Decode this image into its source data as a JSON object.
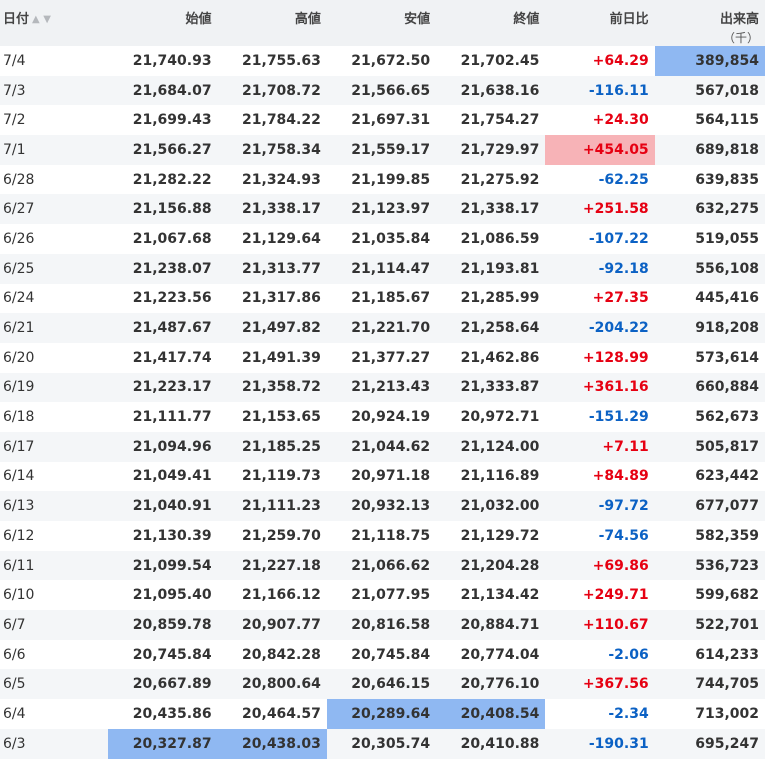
{
  "header": {
    "date": "日付",
    "open": "始値",
    "high": "高値",
    "low": "安値",
    "close": "終値",
    "change": "前日比",
    "volume": "出来高",
    "volume_unit": "（千）",
    "sort_up_icon": "sort-up-icon",
    "sort_down_icon": "sort-down-icon",
    "sort_up_glyph": "▲",
    "sort_down_glyph": "▼"
  },
  "colors": {
    "up": "#e60012",
    "down": "#0b61c4",
    "highlight_blue": "#8fb8f2",
    "highlight_red": "#f7b3b7"
  },
  "rows": [
    {
      "date": "7/4",
      "open": "21,740.93",
      "high": "21,755.63",
      "low": "21,672.50",
      "close": "21,702.45",
      "change": "+64.29",
      "volume": "389,854",
      "hl": [
        "volume"
      ]
    },
    {
      "date": "7/3",
      "open": "21,684.07",
      "high": "21,708.72",
      "low": "21,566.65",
      "close": "21,638.16",
      "change": "-116.11",
      "volume": "567,018",
      "hl": []
    },
    {
      "date": "7/2",
      "open": "21,699.43",
      "high": "21,784.22",
      "low": "21,697.31",
      "close": "21,754.27",
      "change": "+24.30",
      "volume": "564,115",
      "hl": []
    },
    {
      "date": "7/1",
      "open": "21,566.27",
      "high": "21,758.34",
      "low": "21,559.17",
      "close": "21,729.97",
      "change": "+454.05",
      "volume": "689,818",
      "hl": [
        "change"
      ]
    },
    {
      "date": "6/28",
      "open": "21,282.22",
      "high": "21,324.93",
      "low": "21,199.85",
      "close": "21,275.92",
      "change": "-62.25",
      "volume": "639,835",
      "hl": []
    },
    {
      "date": "6/27",
      "open": "21,156.88",
      "high": "21,338.17",
      "low": "21,123.97",
      "close": "21,338.17",
      "change": "+251.58",
      "volume": "632,275",
      "hl": []
    },
    {
      "date": "6/26",
      "open": "21,067.68",
      "high": "21,129.64",
      "low": "21,035.84",
      "close": "21,086.59",
      "change": "-107.22",
      "volume": "519,055",
      "hl": []
    },
    {
      "date": "6/25",
      "open": "21,238.07",
      "high": "21,313.77",
      "low": "21,114.47",
      "close": "21,193.81",
      "change": "-92.18",
      "volume": "556,108",
      "hl": []
    },
    {
      "date": "6/24",
      "open": "21,223.56",
      "high": "21,317.86",
      "low": "21,185.67",
      "close": "21,285.99",
      "change": "+27.35",
      "volume": "445,416",
      "hl": []
    },
    {
      "date": "6/21",
      "open": "21,487.67",
      "high": "21,497.82",
      "low": "21,221.70",
      "close": "21,258.64",
      "change": "-204.22",
      "volume": "918,208",
      "hl": []
    },
    {
      "date": "6/20",
      "open": "21,417.74",
      "high": "21,491.39",
      "low": "21,377.27",
      "close": "21,462.86",
      "change": "+128.99",
      "volume": "573,614",
      "hl": []
    },
    {
      "date": "6/19",
      "open": "21,223.17",
      "high": "21,358.72",
      "low": "21,213.43",
      "close": "21,333.87",
      "change": "+361.16",
      "volume": "660,884",
      "hl": []
    },
    {
      "date": "6/18",
      "open": "21,111.77",
      "high": "21,153.65",
      "low": "20,924.19",
      "close": "20,972.71",
      "change": "-151.29",
      "volume": "562,673",
      "hl": []
    },
    {
      "date": "6/17",
      "open": "21,094.96",
      "high": "21,185.25",
      "low": "21,044.62",
      "close": "21,124.00",
      "change": "+7.11",
      "volume": "505,817",
      "hl": []
    },
    {
      "date": "6/14",
      "open": "21,049.41",
      "high": "21,119.73",
      "low": "20,971.18",
      "close": "21,116.89",
      "change": "+84.89",
      "volume": "623,442",
      "hl": []
    },
    {
      "date": "6/13",
      "open": "21,040.91",
      "high": "21,111.23",
      "low": "20,932.13",
      "close": "21,032.00",
      "change": "-97.72",
      "volume": "677,077",
      "hl": []
    },
    {
      "date": "6/12",
      "open": "21,130.39",
      "high": "21,259.70",
      "low": "21,118.75",
      "close": "21,129.72",
      "change": "-74.56",
      "volume": "582,359",
      "hl": []
    },
    {
      "date": "6/11",
      "open": "21,099.54",
      "high": "21,227.18",
      "low": "21,066.62",
      "close": "21,204.28",
      "change": "+69.86",
      "volume": "536,723",
      "hl": []
    },
    {
      "date": "6/10",
      "open": "21,095.40",
      "high": "21,166.12",
      "low": "21,077.95",
      "close": "21,134.42",
      "change": "+249.71",
      "volume": "599,682",
      "hl": []
    },
    {
      "date": "6/7",
      "open": "20,859.78",
      "high": "20,907.77",
      "low": "20,816.58",
      "close": "20,884.71",
      "change": "+110.67",
      "volume": "522,701",
      "hl": []
    },
    {
      "date": "6/6",
      "open": "20,745.84",
      "high": "20,842.28",
      "low": "20,745.84",
      "close": "20,774.04",
      "change": "-2.06",
      "volume": "614,233",
      "hl": []
    },
    {
      "date": "6/5",
      "open": "20,667.89",
      "high": "20,800.64",
      "low": "20,646.15",
      "close": "20,776.10",
      "change": "+367.56",
      "volume": "744,705",
      "hl": []
    },
    {
      "date": "6/4",
      "open": "20,435.86",
      "high": "20,464.57",
      "low": "20,289.64",
      "close": "20,408.54",
      "change": "-2.34",
      "volume": "713,002",
      "hl": [
        "low",
        "close"
      ]
    },
    {
      "date": "6/3",
      "open": "20,327.87",
      "high": "20,438.03",
      "low": "20,305.74",
      "close": "20,410.88",
      "change": "-190.31",
      "volume": "695,247",
      "hl": [
        "open",
        "high"
      ]
    }
  ]
}
